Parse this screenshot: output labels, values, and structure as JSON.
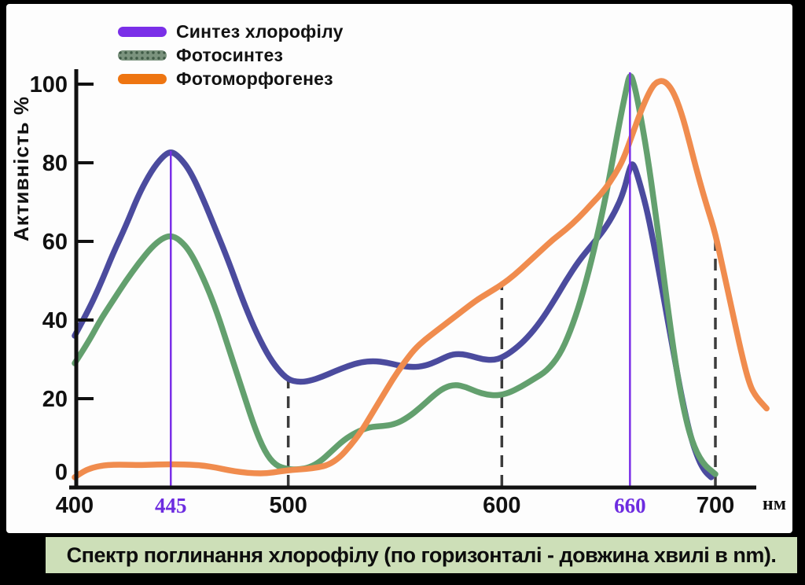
{
  "slide": {
    "background_color": "#000000",
    "panel_color": "#fdfdfd",
    "caption": "Спектр поглинання хлорофілу (по горизонталі - довжина хвилі в nm).",
    "caption_bg": "#cddfb8"
  },
  "legend": {
    "items": [
      {
        "label": "Синтез хлорофілу",
        "swatch_color": "#7a2fe8",
        "dotted": false
      },
      {
        "label": "Фотосинтез",
        "swatch_color": "#7b937e",
        "dotted": true
      },
      {
        "label": "Фотоморфогенез",
        "swatch_color": "#ee7511",
        "dotted": false
      }
    ]
  },
  "chart_data": {
    "type": "line",
    "title": "",
    "xlabel": "нм",
    "ylabel": "Активність %",
    "xlim": [
      400,
      725
    ],
    "ylim": [
      0,
      105
    ],
    "grid": false,
    "legend_position": "top-left",
    "axis_color": "#111111",
    "x_ticks": [
      {
        "value": 400,
        "label": "400",
        "color": "#111111",
        "serif": false
      },
      {
        "value": 445,
        "label": "445",
        "color": "#6d2ce0",
        "serif": true
      },
      {
        "value": 500,
        "label": "500",
        "color": "#111111",
        "serif": false
      },
      {
        "value": 600,
        "label": "600",
        "color": "#111111",
        "serif": false
      },
      {
        "value": 660,
        "label": "660",
        "color": "#6d2ce0",
        "serif": true
      },
      {
        "value": 700,
        "label": "700",
        "color": "#111111",
        "serif": false
      }
    ],
    "y_ticks": [
      {
        "value": 0,
        "label": "0"
      },
      {
        "value": 20,
        "label": "20"
      },
      {
        "value": 40,
        "label": "40"
      },
      {
        "value": 60,
        "label": "60"
      },
      {
        "value": 80,
        "label": "80"
      },
      {
        "value": 100,
        "label": "100"
      }
    ],
    "markers": [
      {
        "x": 445,
        "top": 83,
        "style": "solid",
        "color": "#7a2fe8"
      },
      {
        "x": 660,
        "top": 103,
        "style": "solid",
        "color": "#7a2fe8"
      },
      {
        "x": 500,
        "top": 24.8,
        "style": "dashed",
        "color": "#3c3c3c"
      },
      {
        "x": 600,
        "top": 49,
        "style": "dashed",
        "color": "#3c3c3c"
      },
      {
        "x": 700,
        "top": 62,
        "style": "dashed",
        "color": "#3c3c3c"
      }
    ],
    "series": [
      {
        "id": "chlorophyll-synthesis",
        "name": "Синтез хлорофілу",
        "color": "#4b4b9e",
        "points": [
          [
            400,
            36
          ],
          [
            406,
            42
          ],
          [
            412,
            49
          ],
          [
            418,
            57
          ],
          [
            424,
            64
          ],
          [
            430,
            72
          ],
          [
            436,
            78
          ],
          [
            441,
            81.5
          ],
          [
            445,
            83
          ],
          [
            449,
            81.5
          ],
          [
            454,
            78
          ],
          [
            460,
            71
          ],
          [
            466,
            63
          ],
          [
            472,
            55
          ],
          [
            478,
            46
          ],
          [
            484,
            38
          ],
          [
            490,
            31.5
          ],
          [
            495,
            27.5
          ],
          [
            500,
            24.8
          ],
          [
            505,
            24.2
          ],
          [
            510,
            24.5
          ],
          [
            516,
            25.6
          ],
          [
            522,
            27
          ],
          [
            528,
            28.3
          ],
          [
            534,
            29.3
          ],
          [
            540,
            29.6
          ],
          [
            546,
            29.2
          ],
          [
            552,
            28.4
          ],
          [
            558,
            28
          ],
          [
            564,
            28.3
          ],
          [
            570,
            29.6
          ],
          [
            576,
            31.2
          ],
          [
            581,
            31.4
          ],
          [
            586,
            30.8
          ],
          [
            591,
            30
          ],
          [
            596,
            29.8
          ],
          [
            600,
            30.4
          ],
          [
            606,
            32.5
          ],
          [
            612,
            35.5
          ],
          [
            618,
            39.5
          ],
          [
            624,
            44.5
          ],
          [
            630,
            50
          ],
          [
            636,
            55
          ],
          [
            642,
            59
          ],
          [
            648,
            63
          ],
          [
            653,
            67.5
          ],
          [
            657,
            72.5
          ],
          [
            660,
            79
          ],
          [
            661.5,
            80
          ],
          [
            664,
            76
          ],
          [
            668,
            68
          ],
          [
            672,
            57
          ],
          [
            676,
            45
          ],
          [
            680,
            33
          ],
          [
            684,
            21
          ],
          [
            688,
            11
          ],
          [
            692,
            4.5
          ],
          [
            695,
            1.5
          ],
          [
            698,
            0
          ]
        ]
      },
      {
        "id": "photosynthesis",
        "name": "Фотосинтез",
        "color": "#63a06e",
        "points": [
          [
            400,
            29
          ],
          [
            406,
            34
          ],
          [
            412,
            40
          ],
          [
            418,
            45
          ],
          [
            424,
            50
          ],
          [
            430,
            54.5
          ],
          [
            436,
            58.5
          ],
          [
            441,
            60.8
          ],
          [
            445,
            61.5
          ],
          [
            449,
            60.5
          ],
          [
            454,
            57.5
          ],
          [
            460,
            51
          ],
          [
            466,
            43
          ],
          [
            472,
            33
          ],
          [
            478,
            23
          ],
          [
            484,
            13
          ],
          [
            489,
            6.5
          ],
          [
            494,
            3
          ],
          [
            500,
            2
          ],
          [
            505,
            2
          ],
          [
            510,
            2.5
          ],
          [
            515,
            4
          ],
          [
            520,
            6.5
          ],
          [
            526,
            9.5
          ],
          [
            532,
            11.5
          ],
          [
            538,
            12.8
          ],
          [
            544,
            13
          ],
          [
            550,
            13.5
          ],
          [
            556,
            15.2
          ],
          [
            562,
            17.8
          ],
          [
            568,
            20.8
          ],
          [
            573,
            22.8
          ],
          [
            578,
            23.6
          ],
          [
            583,
            23
          ],
          [
            588,
            21.8
          ],
          [
            593,
            21
          ],
          [
            598,
            20.8
          ],
          [
            603,
            21.4
          ],
          [
            609,
            23
          ],
          [
            615,
            25
          ],
          [
            621,
            27
          ],
          [
            627,
            31
          ],
          [
            632,
            37
          ],
          [
            637,
            45
          ],
          [
            642,
            55
          ],
          [
            647,
            67
          ],
          [
            651,
            78
          ],
          [
            655,
            90
          ],
          [
            658,
            98
          ],
          [
            660,
            103
          ],
          [
            662,
            100
          ],
          [
            665,
            92
          ],
          [
            669,
            79
          ],
          [
            673,
            63
          ],
          [
            677,
            46
          ],
          [
            681,
            30
          ],
          [
            685,
            17.5
          ],
          [
            689,
            9
          ],
          [
            694,
            3.5
          ],
          [
            700,
            0.8
          ]
        ]
      },
      {
        "id": "photomorphogenesis",
        "name": "Фотоморфогенез",
        "color": "#f08c4e",
        "points": [
          [
            400,
            0
          ],
          [
            404,
            1.5
          ],
          [
            408,
            2.4
          ],
          [
            413,
            3
          ],
          [
            418,
            3.2
          ],
          [
            424,
            3.2
          ],
          [
            430,
            3.1
          ],
          [
            436,
            3.2
          ],
          [
            442,
            3.3
          ],
          [
            448,
            3.3
          ],
          [
            454,
            3.2
          ],
          [
            460,
            3
          ],
          [
            466,
            2.5
          ],
          [
            472,
            1.8
          ],
          [
            478,
            1.3
          ],
          [
            484,
            1
          ],
          [
            490,
            1
          ],
          [
            496,
            1.5
          ],
          [
            502,
            1.9
          ],
          [
            508,
            2.1
          ],
          [
            514,
            2.5
          ],
          [
            519,
            3.2
          ],
          [
            524,
            5
          ],
          [
            529,
            8
          ],
          [
            534,
            11.5
          ],
          [
            539,
            16
          ],
          [
            544,
            20.5
          ],
          [
            549,
            25
          ],
          [
            554,
            29
          ],
          [
            559,
            32.5
          ],
          [
            564,
            35
          ],
          [
            570,
            37.5
          ],
          [
            576,
            40
          ],
          [
            582,
            42.5
          ],
          [
            588,
            45
          ],
          [
            594,
            47
          ],
          [
            600,
            49
          ],
          [
            606,
            51.5
          ],
          [
            612,
            54.5
          ],
          [
            618,
            57.5
          ],
          [
            624,
            60.5
          ],
          [
            630,
            63
          ],
          [
            636,
            66
          ],
          [
            642,
            69.5
          ],
          [
            648,
            73
          ],
          [
            653,
            77
          ],
          [
            657,
            81
          ],
          [
            661,
            87
          ],
          [
            665,
            93
          ],
          [
            669,
            98
          ],
          [
            672,
            100.5
          ],
          [
            676,
            101
          ],
          [
            680,
            98.5
          ],
          [
            684,
            93
          ],
          [
            688,
            85
          ],
          [
            692,
            76.5
          ],
          [
            696,
            69
          ],
          [
            700,
            62
          ],
          [
            704,
            52
          ],
          [
            708,
            42
          ],
          [
            712,
            32
          ],
          [
            716,
            23.5
          ],
          [
            719,
            20.5
          ],
          [
            724,
            17.5
          ]
        ]
      }
    ]
  }
}
